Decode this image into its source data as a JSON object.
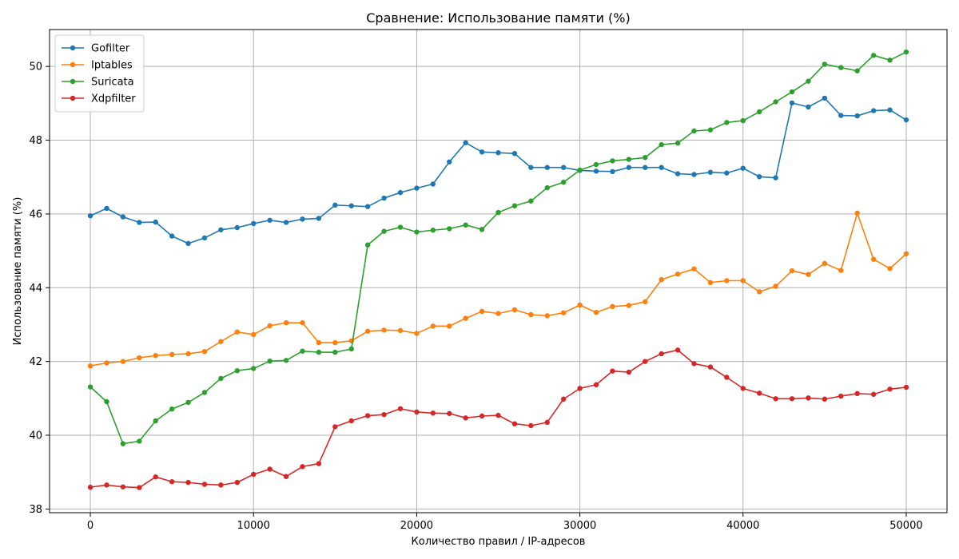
{
  "chart_data": {
    "type": "line",
    "title": "Сравнение: Использование памяти (%)",
    "xlabel": "Количество правил / IP-адресов",
    "ylabel": "Использование памяти (%)",
    "xlim": [
      -2500,
      52500
    ],
    "ylim": [
      37.9,
      51.0
    ],
    "xticks": [
      0,
      10000,
      20000,
      30000,
      40000,
      50000
    ],
    "yticks": [
      38,
      40,
      42,
      44,
      46,
      48,
      50
    ],
    "grid": true,
    "legend": "top-left",
    "x": [
      0,
      1000,
      2000,
      3000,
      4000,
      5000,
      6000,
      7000,
      8000,
      9000,
      10000,
      11000,
      12000,
      13000,
      14000,
      15000,
      16000,
      17000,
      18000,
      19000,
      20000,
      21000,
      22000,
      23000,
      24000,
      25000,
      26000,
      27000,
      28000,
      29000,
      30000,
      31000,
      32000,
      33000,
      34000,
      35000,
      36000,
      37000,
      38000,
      39000,
      40000,
      41000,
      42000,
      43000,
      44000,
      45000,
      46000,
      47000,
      48000,
      49000,
      50000
    ],
    "series": [
      {
        "name": "Gofilter",
        "color": "#1f77b4",
        "values": [
          45.95,
          46.15,
          45.92,
          45.77,
          45.78,
          45.4,
          45.2,
          45.35,
          45.57,
          45.63,
          45.74,
          45.83,
          45.77,
          45.86,
          45.88,
          46.24,
          46.22,
          46.2,
          46.43,
          46.58,
          46.7,
          46.81,
          47.41,
          47.93,
          47.68,
          47.66,
          47.64,
          47.26,
          47.26,
          47.26,
          47.18,
          47.16,
          47.15,
          47.26,
          47.26,
          47.26,
          47.09,
          47.07,
          47.13,
          47.11,
          47.24,
          47.01,
          46.98,
          49.01,
          48.9,
          49.14,
          48.67,
          48.66,
          48.8,
          48.82,
          48.55
        ]
      },
      {
        "name": "Iptables",
        "color": "#ff7f0e",
        "values": [
          41.88,
          41.96,
          42.0,
          42.1,
          42.16,
          42.19,
          42.21,
          42.27,
          42.54,
          42.8,
          42.73,
          42.97,
          43.05,
          43.05,
          42.51,
          42.51,
          42.56,
          42.82,
          42.85,
          42.84,
          42.76,
          42.96,
          42.96,
          43.17,
          43.36,
          43.3,
          43.4,
          43.27,
          43.24,
          43.32,
          43.53,
          43.33,
          43.49,
          43.52,
          43.62,
          44.22,
          44.37,
          44.51,
          44.14,
          44.19,
          44.19,
          43.89,
          44.04,
          44.46,
          44.36,
          44.66,
          44.47,
          46.02,
          44.77,
          44.52,
          44.92
        ]
      },
      {
        "name": "Suricata",
        "color": "#2ca02c",
        "values": [
          41.31,
          40.91,
          39.77,
          39.84,
          40.39,
          40.71,
          40.89,
          41.16,
          41.54,
          41.75,
          41.81,
          42.01,
          42.03,
          42.28,
          42.25,
          42.25,
          42.34,
          45.16,
          45.53,
          45.64,
          45.51,
          45.56,
          45.6,
          45.7,
          45.58,
          46.04,
          46.22,
          46.35,
          46.71,
          46.86,
          47.19,
          47.34,
          47.44,
          47.48,
          47.53,
          47.88,
          47.92,
          48.25,
          48.28,
          48.48,
          48.53,
          48.77,
          49.04,
          49.31,
          49.6,
          50.06,
          49.97,
          49.88,
          50.3,
          50.17,
          50.39
        ]
      },
      {
        "name": "Xdpfilter",
        "color": "#d62728",
        "values": [
          38.59,
          38.65,
          38.6,
          38.58,
          38.87,
          38.74,
          38.72,
          38.67,
          38.65,
          38.72,
          38.94,
          39.08,
          38.88,
          39.15,
          39.23,
          40.23,
          40.39,
          40.53,
          40.56,
          40.72,
          40.63,
          40.6,
          40.59,
          40.47,
          40.52,
          40.54,
          40.31,
          40.26,
          40.35,
          40.98,
          41.27,
          41.37,
          41.74,
          41.71,
          42.0,
          42.21,
          42.31,
          41.94,
          41.85,
          41.57,
          41.27,
          41.14,
          40.99,
          40.99,
          41.01,
          40.98,
          41.06,
          41.13,
          41.11,
          41.25,
          41.3
        ]
      }
    ]
  }
}
